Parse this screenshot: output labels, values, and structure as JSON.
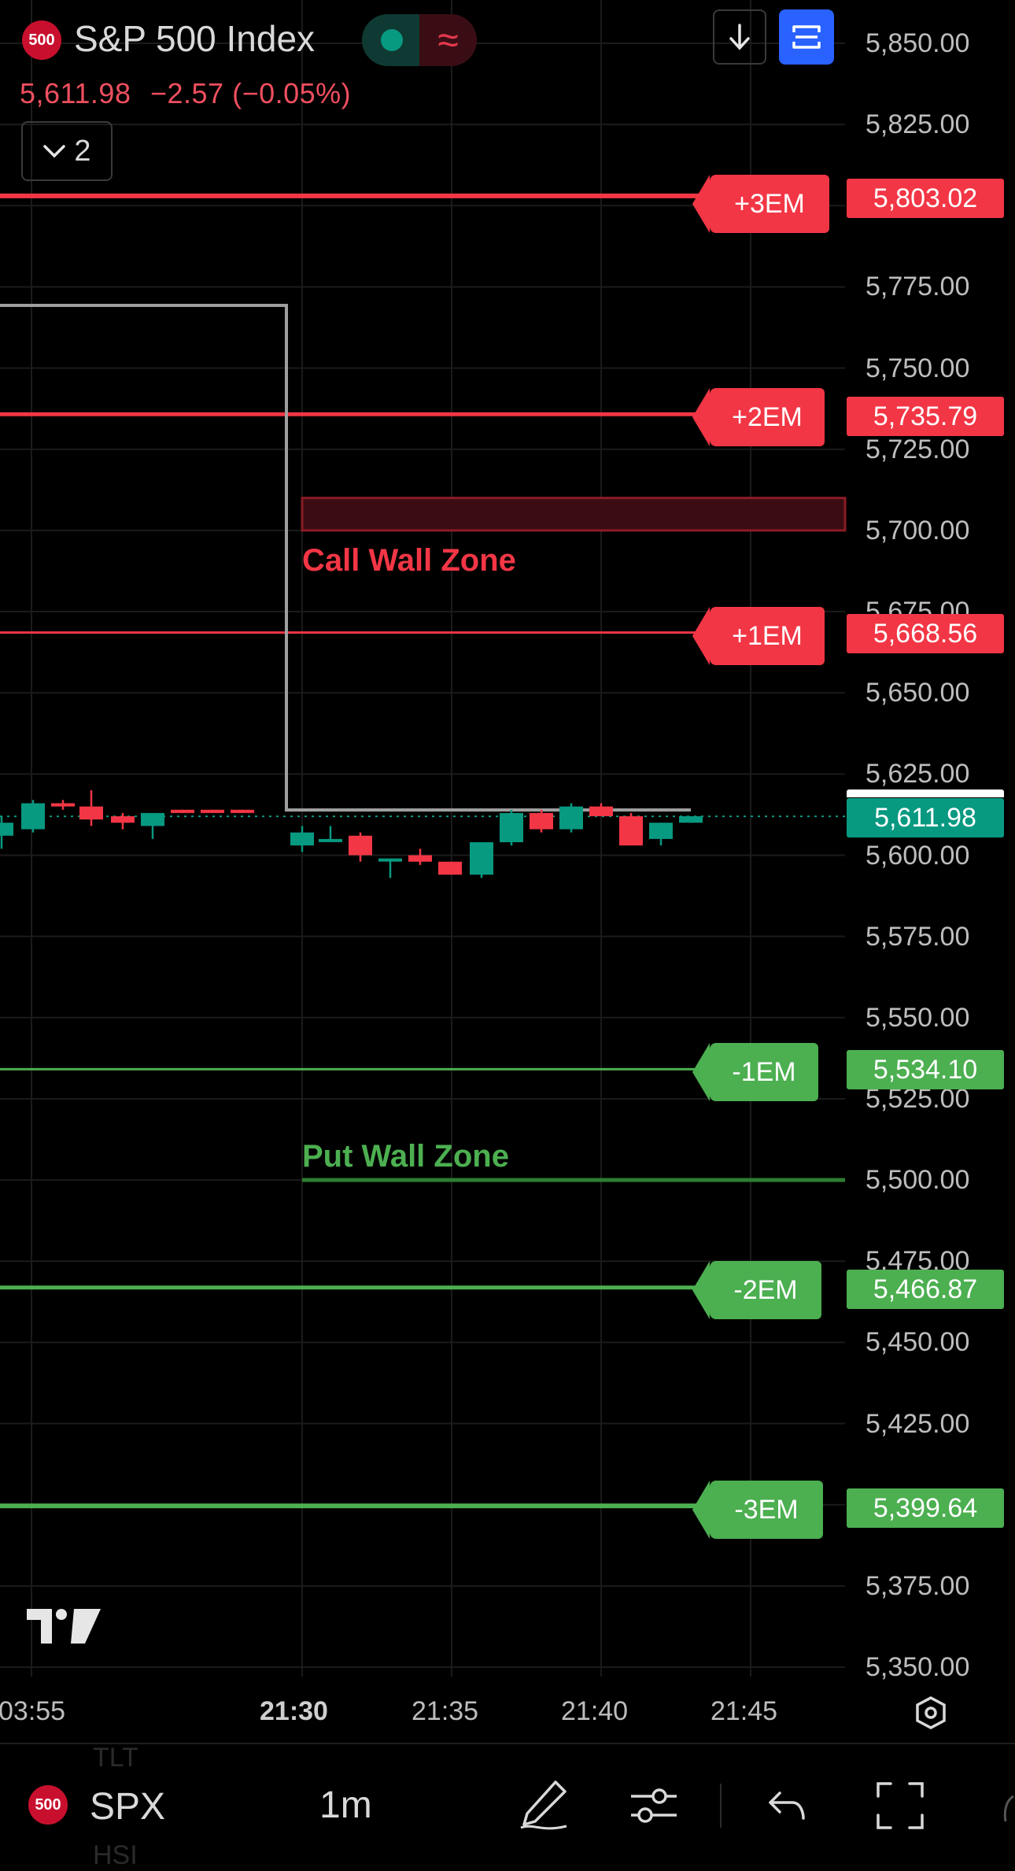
{
  "header": {
    "symbol_badge": "500",
    "title": "S&P 500 Index",
    "last_price": "5,611.98",
    "change": "−2.57",
    "change_pct": "(−0.05%)",
    "collapse_count": "2",
    "indicator_wave": "≈"
  },
  "levels": {
    "p3em": {
      "label": "+3EM",
      "price": "5,803.02"
    },
    "p2em": {
      "label": "+2EM",
      "price": "5,735.79"
    },
    "p1em": {
      "label": "+1EM",
      "price": "5,668.56"
    },
    "m1em": {
      "label": "-1EM",
      "price": "5,534.10"
    },
    "m2em": {
      "label": "-2EM",
      "price": "5,466.87"
    },
    "m3em": {
      "label": "-3EM",
      "price": "5,399.64"
    },
    "last": {
      "price": "5,611.98"
    }
  },
  "zones": {
    "call_wall": "Call Wall Zone",
    "put_wall": "Put Wall Zone"
  },
  "price_axis": [
    "5,850.00",
    "5,825.00",
    "5,775.00",
    "5,750.00",
    "5,725.00",
    "5,700.00",
    "5,675.00",
    "5,650.00",
    "5,625.00",
    "5,600.00",
    "5,575.00",
    "5,550.00",
    "5,525.00",
    "5,500.00",
    "5,475.00",
    "5,450.00",
    "5,425.00",
    "5,375.00",
    "5,350.00"
  ],
  "time_axis": [
    "03:55",
    "21:30",
    "21:35",
    "21:40",
    "21:45"
  ],
  "bottom_bar": {
    "badge": "500",
    "symbol": "SPX",
    "interval": "1m",
    "ghost_top": "TLT",
    "ghost_bottom": "HSI"
  },
  "colors": {
    "up": "#089981",
    "down": "#f23645",
    "em_red": "#f23645",
    "em_green": "#4caf50",
    "accent": "#2962ff"
  },
  "chart_data": {
    "type": "candlestick",
    "candles": [
      {
        "t": "pre",
        "o": 5606,
        "h": 5612,
        "l": 5602,
        "c": 5610
      },
      {
        "t": "pre",
        "o": 5608,
        "h": 5617,
        "l": 5607,
        "c": 5616
      },
      {
        "t": "pre",
        "o": 5616,
        "h": 5617,
        "l": 5614,
        "c": 5615
      },
      {
        "t": "pre",
        "o": 5615,
        "h": 5620,
        "l": 5609,
        "c": 5611
      },
      {
        "t": "pre",
        "o": 5612,
        "h": 5613,
        "l": 5608,
        "c": 5610
      },
      {
        "t": "pre",
        "o": 5609,
        "h": 5613,
        "l": 5605,
        "c": 5613
      },
      {
        "t": "pre",
        "o": 5614,
        "h": 5614,
        "l": 5613,
        "c": 5613
      },
      {
        "t": "pre",
        "o": 5614,
        "h": 5614,
        "l": 5613,
        "c": 5613
      },
      {
        "t": "pre",
        "o": 5614,
        "h": 5614,
        "l": 5613,
        "c": 5613
      },
      {
        "t": "21:30",
        "o": 5603,
        "h": 5609,
        "l": 5601,
        "c": 5607
      },
      {
        "t": "21:31",
        "o": 5605,
        "h": 5609,
        "l": 5604,
        "c": 5605
      },
      {
        "t": "21:32",
        "o": 5606,
        "h": 5607,
        "l": 5598,
        "c": 5600
      },
      {
        "t": "21:33",
        "o": 5599,
        "h": 5599,
        "l": 5593,
        "c": 5599
      },
      {
        "t": "21:34",
        "o": 5600,
        "h": 5602,
        "l": 5597,
        "c": 5598
      },
      {
        "t": "21:35",
        "o": 5598,
        "h": 5598,
        "l": 5594,
        "c": 5594
      },
      {
        "t": "21:36",
        "o": 5594,
        "h": 5604,
        "l": 5593,
        "c": 5604
      },
      {
        "t": "21:37",
        "o": 5604,
        "h": 5614,
        "l": 5603,
        "c": 5613
      },
      {
        "t": "21:38",
        "o": 5613,
        "h": 5614,
        "l": 5607,
        "c": 5608
      },
      {
        "t": "21:39",
        "o": 5608,
        "h": 5616,
        "l": 5607,
        "c": 5615
      },
      {
        "t": "21:40",
        "o": 5615,
        "h": 5616,
        "l": 5612,
        "c": 5612
      },
      {
        "t": "21:41",
        "o": 5612,
        "h": 5613,
        "l": 5603,
        "c": 5603
      },
      {
        "t": "21:42",
        "o": 5605,
        "h": 5610,
        "l": 5603,
        "c": 5610
      },
      {
        "t": "21:43",
        "o": 5610,
        "h": 5612,
        "l": 5610,
        "c": 5612
      }
    ],
    "horizontal_levels": [
      5803.02,
      5735.79,
      5668.56,
      5534.1,
      5466.87,
      5399.64
    ],
    "call_wall_zone": [
      5700,
      5710
    ],
    "put_wall_zone": [
      5500,
      5500
    ],
    "last_price": 5611.98,
    "ylim": [
      5350,
      5850
    ]
  }
}
